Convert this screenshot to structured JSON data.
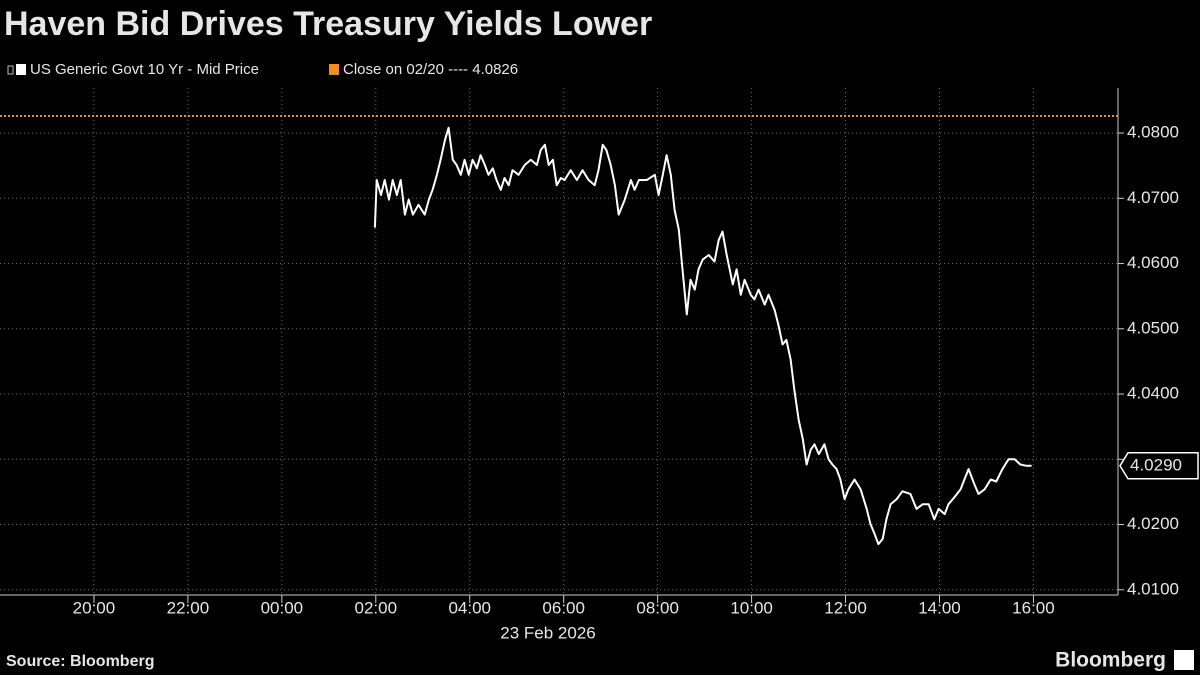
{
  "chart_data": {
    "type": "line",
    "title": "Haven Bid Drives Treasury Yields Lower",
    "date_label": "23 Feb 2026",
    "source": "Source: Bloomberg",
    "brand": "Bloomberg",
    "xlim": [
      -6,
      17.8
    ],
    "ylim": [
      4.0092,
      4.0869
    ],
    "xticks": [
      {
        "value": -4,
        "label": "20:00"
      },
      {
        "value": -2,
        "label": "22:00"
      },
      {
        "value": 0,
        "label": "00:00"
      },
      {
        "value": 2,
        "label": "02:00"
      },
      {
        "value": 4,
        "label": "04:00"
      },
      {
        "value": 6,
        "label": "06:00"
      },
      {
        "value": 8,
        "label": "08:00"
      },
      {
        "value": 10,
        "label": "10:00"
      },
      {
        "value": 12,
        "label": "12:00"
      },
      {
        "value": 14,
        "label": "14:00"
      },
      {
        "value": 16,
        "label": "16:00"
      }
    ],
    "yticks": [
      {
        "value": 4.01,
        "label": "4.0100"
      },
      {
        "value": 4.02,
        "label": "4.0200"
      },
      {
        "value": 4.03,
        "label": "4.0300"
      },
      {
        "value": 4.04,
        "label": "4.0400"
      },
      {
        "value": 4.05,
        "label": "4.0500"
      },
      {
        "value": 4.06,
        "label": "4.0600"
      },
      {
        "value": 4.07,
        "label": "4.0700"
      },
      {
        "value": 4.08,
        "label": "4.0800"
      }
    ],
    "grid": true,
    "reference_line": {
      "name": "Close on 02/20 ---- 4.0826",
      "value": 4.0826,
      "color": "#f28c1e"
    },
    "last_value_label": {
      "value": 4.029,
      "label": "4.0290"
    },
    "series": [
      {
        "name": "US Generic Govt 10 Yr - Mid Price",
        "color": "#ffffff",
        "x": [
          1.98,
          2.02,
          2.11,
          2.19,
          2.28,
          2.36,
          2.45,
          2.53,
          2.62,
          2.7,
          2.79,
          2.91,
          3.04,
          3.13,
          3.21,
          3.3,
          3.38,
          3.47,
          3.55,
          3.64,
          3.72,
          3.81,
          3.89,
          3.98,
          4.06,
          4.15,
          4.23,
          4.32,
          4.4,
          4.49,
          4.57,
          4.66,
          4.74,
          4.83,
          4.91,
          5.04,
          5.17,
          5.3,
          5.43,
          5.51,
          5.6,
          5.68,
          5.77,
          5.85,
          5.94,
          6.02,
          6.15,
          6.28,
          6.4,
          6.53,
          6.66,
          6.74,
          6.83,
          6.91,
          7.0,
          7.09,
          7.17,
          7.3,
          7.43,
          7.51,
          7.6,
          7.77,
          7.94,
          8.02,
          8.11,
          8.19,
          8.28,
          8.36,
          8.45,
          8.53,
          8.62,
          8.7,
          8.79,
          8.87,
          8.96,
          9.09,
          9.21,
          9.3,
          9.38,
          9.47,
          9.6,
          9.68,
          9.77,
          9.85,
          9.98,
          10.06,
          10.15,
          10.28,
          10.36,
          10.49,
          10.57,
          10.66,
          10.74,
          10.83,
          10.91,
          11.0,
          11.09,
          11.17,
          11.26,
          11.34,
          11.43,
          11.55,
          11.64,
          11.72,
          11.81,
          11.89,
          11.98,
          12.06,
          12.19,
          12.32,
          12.45,
          12.53,
          12.62,
          12.7,
          12.79,
          12.87,
          12.96,
          13.09,
          13.21,
          13.38,
          13.51,
          13.64,
          13.77,
          13.89,
          13.98,
          14.11,
          14.19,
          14.32,
          14.45,
          14.53,
          14.62,
          14.74,
          14.83,
          14.96,
          15.09,
          15.21,
          15.34,
          15.47,
          15.6,
          15.72,
          15.85,
          15.96
        ],
        "values": [
          4.0655,
          4.0728,
          4.0705,
          4.0728,
          4.0698,
          4.0728,
          4.0705,
          4.0728,
          4.0675,
          4.0698,
          4.0675,
          4.069,
          4.0675,
          4.0698,
          4.0713,
          4.0736,
          4.0759,
          4.0789,
          4.0808,
          4.0759,
          4.0751,
          4.0736,
          4.0759,
          4.0736,
          4.0759,
          4.0746,
          4.0766,
          4.0751,
          4.0736,
          4.0746,
          4.0728,
          4.0713,
          4.0731,
          4.072,
          4.0743,
          4.0736,
          4.0751,
          4.0759,
          4.0751,
          4.0774,
          4.0782,
          4.0751,
          4.0759,
          4.072,
          4.0731,
          4.0728,
          4.0743,
          4.0728,
          4.0743,
          4.0728,
          4.072,
          4.0743,
          4.0782,
          4.0774,
          4.0751,
          4.072,
          4.0675,
          4.0698,
          4.0728,
          4.0713,
          4.0728,
          4.0728,
          4.0736,
          4.0705,
          4.0736,
          4.0766,
          4.0736,
          4.0682,
          4.0652,
          4.0591,
          4.0522,
          4.0575,
          4.056,
          4.0591,
          4.0606,
          4.0613,
          4.0603,
          4.0636,
          4.0649,
          4.0613,
          4.0568,
          4.0591,
          4.0552,
          4.0575,
          4.0552,
          4.0545,
          4.056,
          4.0537,
          4.0552,
          4.0529,
          4.0506,
          4.0476,
          4.0483,
          4.0453,
          4.0407,
          4.0361,
          4.0331,
          4.0292,
          4.0315,
          4.0323,
          4.0308,
          4.0323,
          4.03,
          4.0292,
          4.0285,
          4.0269,
          4.0239,
          4.0254,
          4.0269,
          4.0254,
          4.0224,
          4.0201,
          4.0185,
          4.017,
          4.0178,
          4.0208,
          4.0231,
          4.0239,
          4.0251,
          4.0247,
          4.0224,
          4.0231,
          4.0231,
          4.0208,
          4.0224,
          4.0216,
          4.0231,
          4.0242,
          4.0254,
          4.0269,
          4.0285,
          4.0262,
          4.0247,
          4.0254,
          4.0269,
          4.0266,
          4.0285,
          4.03,
          4.03,
          4.0292,
          4.029,
          4.029
        ]
      }
    ]
  }
}
